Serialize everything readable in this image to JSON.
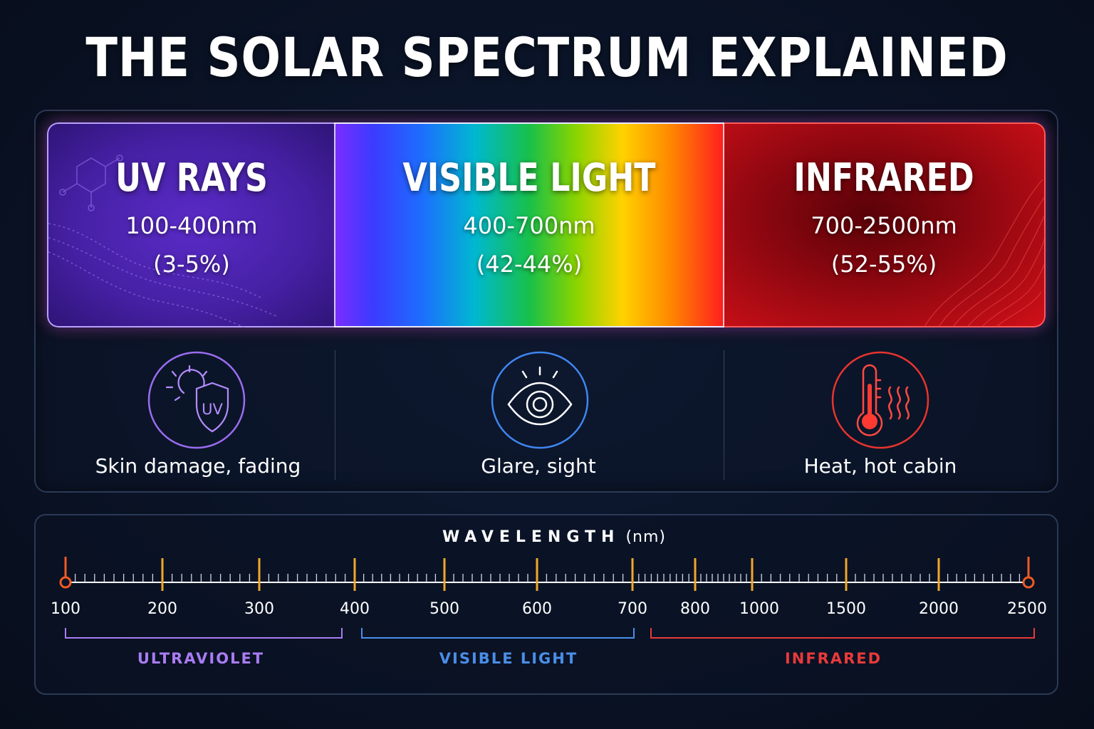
{
  "title": "THE SOLAR SPECTRUM EXPLAINED",
  "bands": [
    {
      "name": "UV RAYS",
      "range": "100-400nm",
      "share": "(3-5%)"
    },
    {
      "name": "VISIBLE LIGHT",
      "range": "400-700nm",
      "share": "(42-44%)"
    },
    {
      "name": "INFRARED",
      "range": "700-2500nm",
      "share": "(52-55%)"
    }
  ],
  "effects": [
    {
      "icon": "sun-uv-shield-icon",
      "label": "Skin damage, fading",
      "badge": "UV"
    },
    {
      "icon": "eye-icon",
      "label": "Glare, sight"
    },
    {
      "icon": "thermometer-heat-icon",
      "label": "Heat, hot cabin"
    }
  ],
  "axis": {
    "title": "WAVELENGTH",
    "unit": "(nm)",
    "ticks": [
      "100",
      "200",
      "300",
      "400",
      "500",
      "600",
      "700",
      "800",
      "1000",
      "1500",
      "2000",
      "2500"
    ],
    "regions": [
      {
        "label": "ULTRAVIOLET",
        "color": "#a97cf2"
      },
      {
        "label": "VISIBLE LIGHT",
        "color": "#4a8ee8"
      },
      {
        "label": "INFRARED",
        "color": "#e83a3a"
      }
    ]
  },
  "colors": {
    "uv": "#8a5cf0",
    "visible": "#3f86f0",
    "infrared": "#f03a34",
    "tick_major": "#f2a72a",
    "endpoint": "#f05a24"
  }
}
